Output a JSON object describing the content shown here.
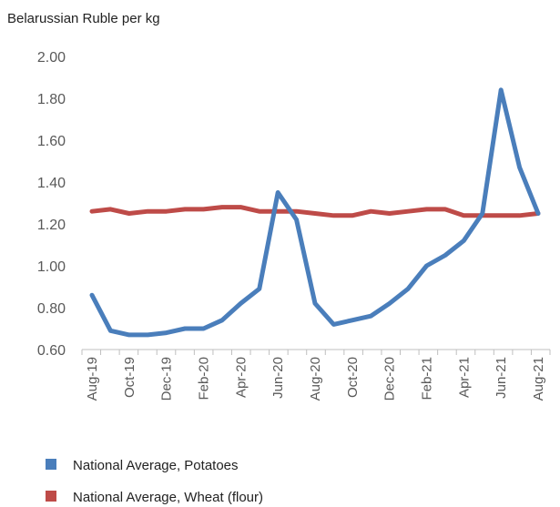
{
  "chart_data": {
    "type": "line",
    "ylabel": "Belarussian Ruble per kg",
    "xlabel": "",
    "title": "",
    "ylim": [
      0.6,
      2.0
    ],
    "yticks": [
      0.6,
      0.8,
      1.0,
      1.2,
      1.4,
      1.6,
      1.8,
      2.0
    ],
    "ytick_labels": [
      "0.60",
      "0.80",
      "1.00",
      "1.20",
      "1.40",
      "1.60",
      "1.80",
      "2.00"
    ],
    "x": [
      "Aug-19",
      "Sep-19",
      "Oct-19",
      "Nov-19",
      "Dec-19",
      "Jan-20",
      "Feb-20",
      "Mar-20",
      "Apr-20",
      "May-20",
      "Jun-20",
      "Jul-20",
      "Aug-20",
      "Sep-20",
      "Oct-20",
      "Nov-20",
      "Dec-20",
      "Jan-21",
      "Feb-21",
      "Mar-21",
      "Apr-21",
      "May-21",
      "Jun-21",
      "Jul-21",
      "Aug-21"
    ],
    "xtick_labels": [
      "Aug-19",
      "",
      "Oct-19",
      "",
      "Dec-19",
      "",
      "Feb-20",
      "",
      "Apr-20",
      "",
      "Jun-20",
      "",
      "Aug-20",
      "",
      "Oct-20",
      "",
      "Dec-20",
      "",
      "Feb-21",
      "",
      "Apr-21",
      "",
      "Jun-21",
      "",
      "Aug-21"
    ],
    "series": [
      {
        "name": "National Average, Potatoes",
        "color": "#4a7ebb",
        "values": [
          0.86,
          0.69,
          0.67,
          0.67,
          0.68,
          0.7,
          0.7,
          0.74,
          0.82,
          0.89,
          1.35,
          1.22,
          0.82,
          0.72,
          0.74,
          0.76,
          0.82,
          0.89,
          1.0,
          1.05,
          1.12,
          1.25,
          1.84,
          1.47,
          1.25
        ]
      },
      {
        "name": "National Average, Wheat (flour)",
        "color": "#be4b48",
        "values": [
          1.26,
          1.27,
          1.25,
          1.26,
          1.26,
          1.27,
          1.27,
          1.28,
          1.28,
          1.26,
          1.26,
          1.26,
          1.25,
          1.24,
          1.24,
          1.26,
          1.25,
          1.26,
          1.27,
          1.27,
          1.24,
          1.24,
          1.24,
          1.24,
          1.25
        ]
      }
    ],
    "grid": false,
    "legend": "bottom-left"
  }
}
